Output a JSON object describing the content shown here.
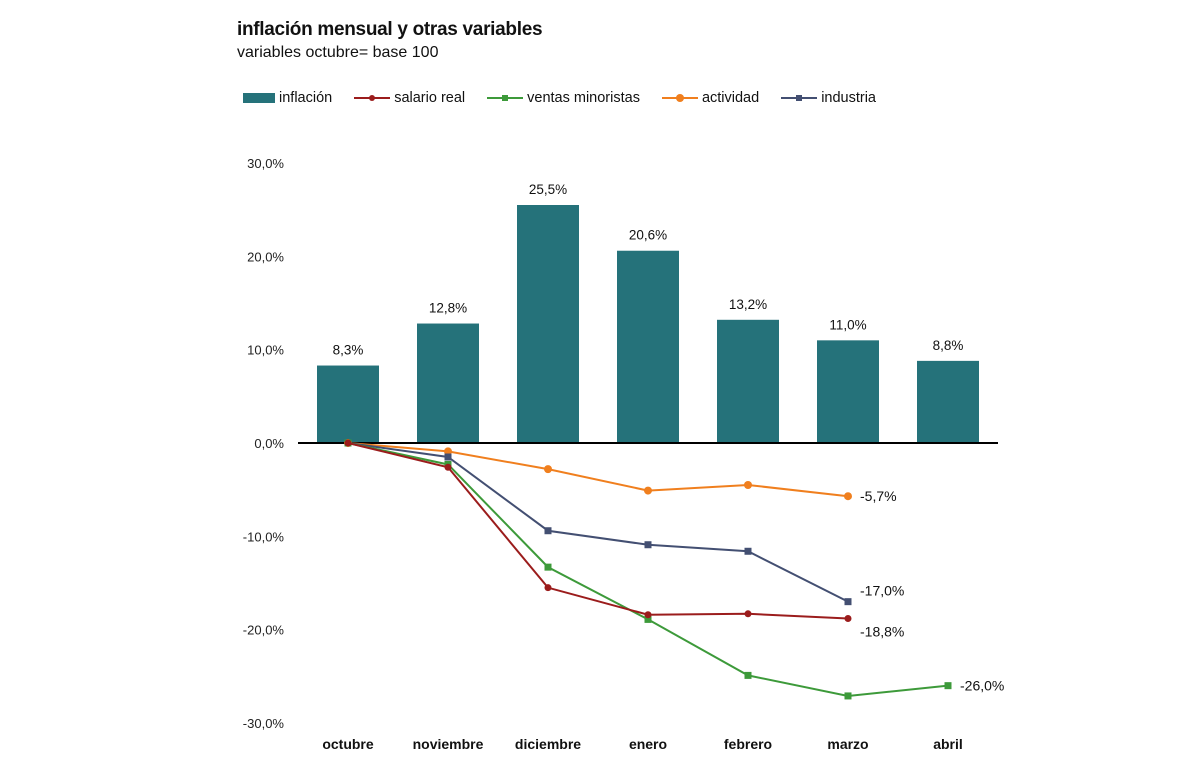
{
  "chart_data": {
    "type": "bar+line",
    "title": "inflación mensual y otras variables",
    "subtitle": "variables octubre= base 100",
    "categories": [
      "octubre",
      "noviembre",
      "diciembre",
      "enero",
      "febrero",
      "marzo",
      "abril"
    ],
    "ylim": [
      -30,
      30
    ],
    "yticks": [
      30,
      20,
      10,
      0,
      -10,
      -20,
      -30
    ],
    "ytick_labels": [
      "30,0%",
      "20,0%",
      "10,0%",
      "0,0%",
      "-10,0%",
      "-20,0%",
      "-30,0%"
    ],
    "grid": false,
    "legend_position": "top",
    "bars": {
      "name": "inflación",
      "color": "#25727a",
      "values": [
        8.3,
        12.8,
        25.5,
        20.6,
        13.2,
        11.0,
        8.8
      ],
      "labels": [
        "8,3%",
        "12,8%",
        "25,5%",
        "20,6%",
        "13,2%",
        "11,0%",
        "8,8%"
      ]
    },
    "series": [
      {
        "name": "salario real",
        "color": "#9b1c1c",
        "marker": "circle",
        "values": [
          0,
          -2.6,
          -15.5,
          -18.4,
          -18.3,
          -18.8,
          null
        ],
        "end_label": "-18,8%"
      },
      {
        "name": "ventas minoristas",
        "color": "#3d9a3a",
        "marker": "square",
        "values": [
          0,
          -2.3,
          -13.3,
          -18.9,
          -24.9,
          -27.1,
          -26.0
        ],
        "end_label": "-26,0%"
      },
      {
        "name": "actividad",
        "color": "#f07f1e",
        "marker": "circle",
        "values": [
          0,
          -0.9,
          -2.8,
          -5.1,
          -4.5,
          -5.7,
          null
        ],
        "end_label": "-5,7%"
      },
      {
        "name": "industria",
        "color": "#434f72",
        "marker": "square",
        "values": [
          0,
          -1.5,
          -9.4,
          -10.9,
          -11.6,
          -17.0,
          null
        ],
        "end_label": "-17,0%"
      }
    ]
  }
}
